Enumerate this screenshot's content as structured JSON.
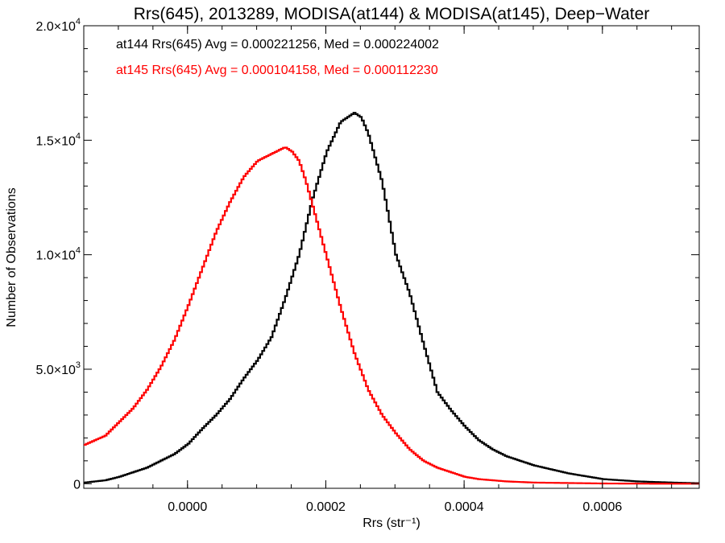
{
  "chart_data": {
    "type": "line",
    "title": "Rrs(645), 2013289, MODISA(at144) & MODISA(at145), Deep−Water",
    "xlabel": "Rrs (str⁻¹)",
    "ylabel": "Number of Observations",
    "xlim": [
      -0.00015,
      0.00074
    ],
    "ylim": [
      -200,
      20000
    ],
    "grid": false,
    "x_ticks": [
      {
        "value": 0.0,
        "label": "0.0000"
      },
      {
        "value": 0.0002,
        "label": "0.0002"
      },
      {
        "value": 0.0004,
        "label": "0.0004"
      },
      {
        "value": 0.0006,
        "label": "0.0006"
      }
    ],
    "y_ticks": [
      {
        "value": 0,
        "label": "0",
        "exp": ""
      },
      {
        "value": 5000,
        "label": "5.0×10",
        "exp": "3"
      },
      {
        "value": 10000,
        "label": "1.0×10",
        "exp": "4"
      },
      {
        "value": 15000,
        "label": "1.5×10",
        "exp": "4"
      },
      {
        "value": 20000,
        "label": "2.0×10",
        "exp": "4"
      }
    ],
    "annotations": [
      {
        "text": "at144 Rrs(645) Avg = 0.000221256, Med = 0.000224002",
        "color": "#000000"
      },
      {
        "text": "at145 Rrs(645) Avg = 0.000104158, Med = 0.000112230",
        "color": "#ff0000"
      }
    ],
    "series": [
      {
        "color": "#000000",
        "x": [
          -0.00015,
          -0.00012,
          -0.0001,
          -8e-05,
          -6e-05,
          -4e-05,
          -2e-05,
          0.0,
          2e-05,
          4e-05,
          6e-05,
          8e-05,
          0.0001,
          0.00012,
          0.00014,
          0.00016,
          0.00018,
          0.0002,
          0.00022,
          0.00024,
          0.00025,
          0.00026,
          0.00028,
          0.0003,
          0.00032,
          0.00034,
          0.00036,
          0.00038,
          0.0004,
          0.00042,
          0.00044,
          0.00046,
          0.00048,
          0.0005,
          0.00055,
          0.0006,
          0.00065,
          0.0007,
          0.00074
        ],
        "y": [
          50,
          150,
          300,
          500,
          700,
          1000,
          1300,
          1750,
          2400,
          3000,
          3700,
          4600,
          5400,
          6400,
          8100,
          10000,
          12500,
          14500,
          15800,
          16200,
          16000,
          15300,
          13200,
          10000,
          8300,
          6100,
          4000,
          3200,
          2500,
          1900,
          1500,
          1200,
          1000,
          800,
          450,
          200,
          100,
          50,
          20
        ]
      },
      {
        "color": "#ff0000",
        "x": [
          -0.00015,
          -0.00012,
          -0.0001,
          -8e-05,
          -6e-05,
          -4e-05,
          -2e-05,
          0.0,
          2e-05,
          4e-05,
          6e-05,
          8e-05,
          0.0001,
          0.00012,
          0.00014,
          0.00015,
          0.00016,
          0.00017,
          0.00018,
          0.0002,
          0.00022,
          0.00024,
          0.00026,
          0.00028,
          0.0003,
          0.00032,
          0.00034,
          0.00036,
          0.00038,
          0.0004,
          0.00042,
          0.00044,
          0.00046,
          0.0005,
          0.00055,
          0.0006,
          0.00065,
          0.0007,
          0.00074
        ],
        "y": [
          1700,
          2100,
          2700,
          3300,
          4100,
          5100,
          6300,
          7800,
          9400,
          11000,
          12300,
          13400,
          14100,
          14400,
          14700,
          14500,
          14100,
          13200,
          12100,
          9900,
          7700,
          5700,
          4100,
          3000,
          2200,
          1500,
          1000,
          700,
          500,
          300,
          200,
          150,
          100,
          50,
          30,
          10,
          5,
          0,
          0
        ]
      }
    ]
  }
}
